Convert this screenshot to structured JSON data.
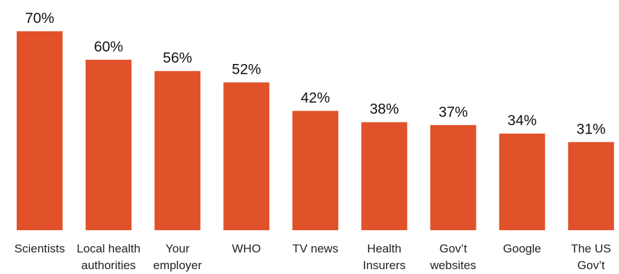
{
  "chart_data": {
    "type": "bar",
    "categories": [
      [
        "Scientists"
      ],
      [
        "Local health",
        "authorities"
      ],
      [
        "Your",
        "employer"
      ],
      [
        "WHO"
      ],
      [
        "TV news"
      ],
      [
        "Health",
        "Insurers"
      ],
      [
        "Gov’t",
        "websites"
      ],
      [
        "Google"
      ],
      [
        "The US",
        "Gov’t"
      ]
    ],
    "values": [
      70,
      60,
      56,
      52,
      42,
      38,
      37,
      34,
      31
    ],
    "value_labels": [
      "70%",
      "60%",
      "56%",
      "52%",
      "42%",
      "38%",
      "37%",
      "34%",
      "31%"
    ],
    "bar_color": "#E1522A",
    "title": "",
    "xlabel": "",
    "ylabel": "",
    "ylim": [
      0,
      70
    ],
    "grid": false,
    "legend": "none"
  }
}
